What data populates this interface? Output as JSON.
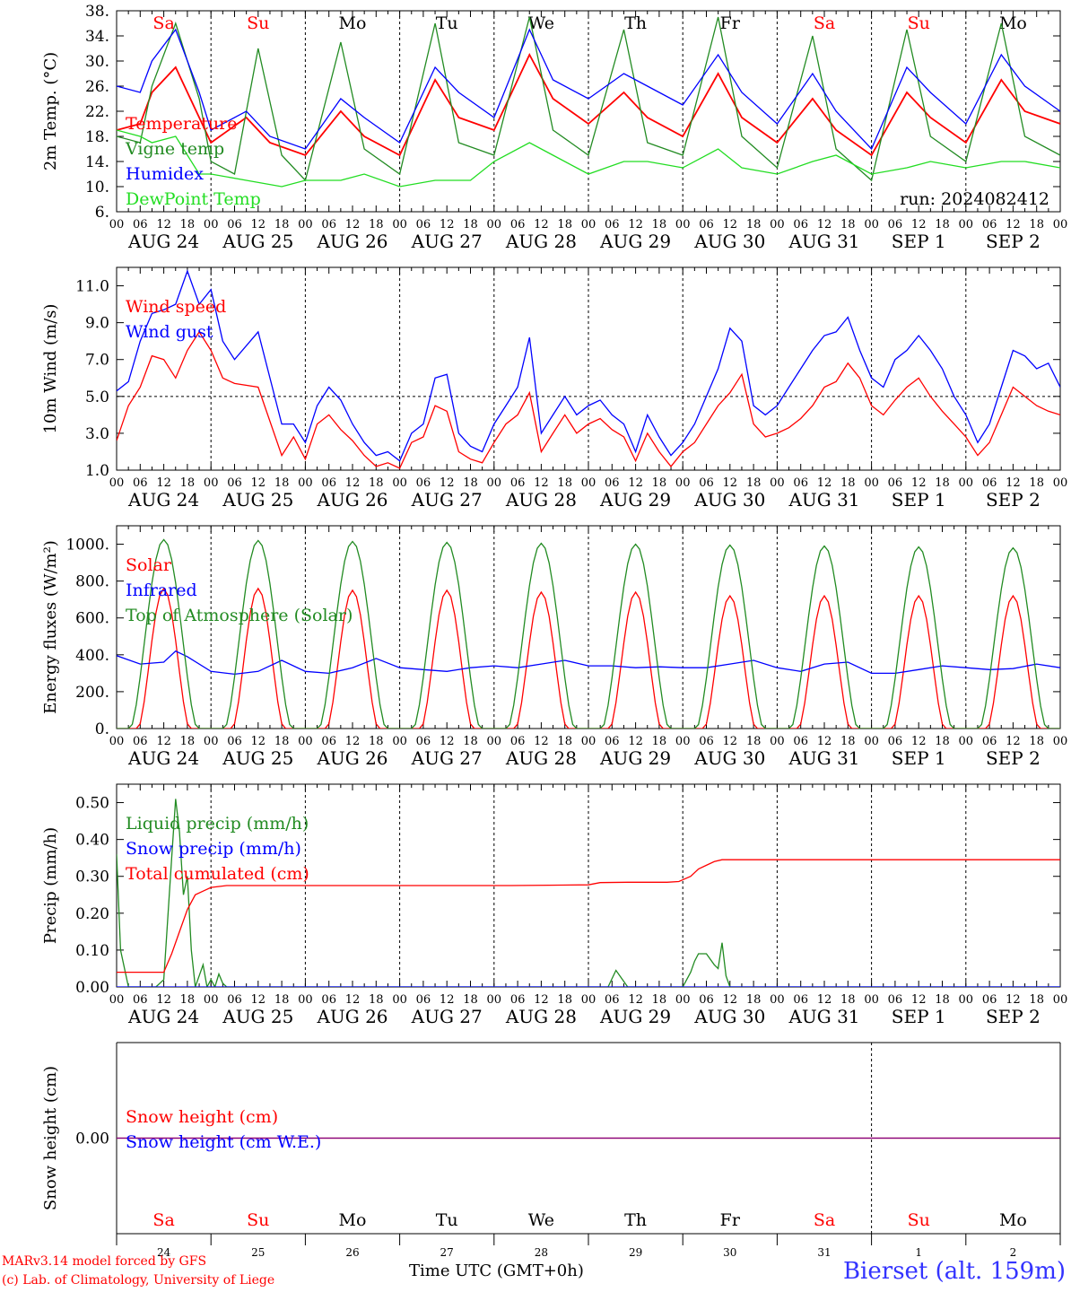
{
  "footer": {
    "model_line": "MARv3.14 model forced by GFS",
    "copyright_line": "(c) Lab. of Climatology, University of Liege",
    "xlabel": "Time UTC (GMT+0h)",
    "station": "Bierset (alt. 159m)"
  },
  "colors": {
    "red": "#ff0000",
    "green": "#228b22",
    "blue": "#0000ff",
    "lightgreen": "#22dd22",
    "purple": "#800080"
  },
  "chart_data": [
    {
      "type": "line",
      "id": "temperature",
      "ylabel": "2m Temp. (°C)",
      "ylim": [
        6,
        38
      ],
      "yticks": [
        "6.",
        "10.",
        "14.",
        "18.",
        "22.",
        "26.",
        "30.",
        "34.",
        "38."
      ],
      "ytick_values": [
        6,
        10,
        14,
        18,
        22,
        26,
        30,
        34,
        38
      ],
      "annotation": "run: 2024082412",
      "weekdays": [
        {
          "label": "Sa",
          "color": "#ff0000"
        },
        {
          "label": "Su",
          "color": "#ff0000"
        },
        {
          "label": "Mo",
          "color": "#000000"
        },
        {
          "label": "Tu",
          "color": "#000000"
        },
        {
          "label": "We",
          "color": "#000000"
        },
        {
          "label": "Th",
          "color": "#000000"
        },
        {
          "label": "Fr",
          "color": "#000000"
        },
        {
          "label": "Sa",
          "color": "#ff0000"
        },
        {
          "label": "Su",
          "color": "#ff0000"
        },
        {
          "label": "Mo",
          "color": "#000000"
        }
      ],
      "series": [
        {
          "name": "Temperature",
          "color": "#ff0000",
          "x": [
            0,
            6,
            9,
            15,
            21,
            24,
            33,
            39,
            48,
            57,
            63,
            72,
            81,
            87,
            96,
            105,
            111,
            120,
            129,
            135,
            144,
            153,
            159,
            168,
            177,
            183,
            192,
            201,
            207,
            216,
            225,
            231,
            240
          ],
          "y": [
            19,
            20,
            25,
            29,
            21,
            17,
            21,
            17,
            15,
            22,
            18,
            15,
            27,
            21,
            19,
            31,
            24,
            20,
            25,
            21,
            18,
            28,
            21,
            17,
            24,
            19,
            15,
            25,
            21,
            17,
            27,
            22,
            20
          ]
        },
        {
          "name": "Vigne temp",
          "color": "#228b22",
          "x": [
            0,
            6,
            9,
            15,
            21,
            24,
            30,
            36,
            42,
            48,
            57,
            63,
            72,
            81,
            87,
            96,
            105,
            111,
            120,
            129,
            135,
            144,
            153,
            159,
            168,
            177,
            183,
            192,
            201,
            207,
            216,
            225,
            231,
            240
          ],
          "y": [
            18,
            17,
            26,
            36,
            24,
            14,
            12,
            32,
            15,
            11,
            33,
            16,
            12,
            36,
            17,
            15,
            37,
            19,
            15,
            35,
            17,
            15,
            37,
            18,
            13,
            34,
            16,
            11,
            35,
            18,
            14,
            36,
            18,
            15
          ]
        },
        {
          "name": "Humidex",
          "color": "#0000ff",
          "x": [
            0,
            6,
            9,
            15,
            21,
            24,
            33,
            39,
            48,
            57,
            63,
            72,
            81,
            87,
            96,
            105,
            111,
            120,
            129,
            135,
            144,
            153,
            159,
            168,
            177,
            183,
            192,
            201,
            207,
            216,
            225,
            231,
            240
          ],
          "y": [
            26,
            25,
            30,
            35,
            25,
            19,
            22,
            18,
            16,
            24,
            21,
            17,
            29,
            25,
            21,
            35,
            27,
            24,
            28,
            26,
            23,
            31,
            25,
            20,
            28,
            22,
            16,
            29,
            25,
            20,
            31,
            26,
            22
          ]
        },
        {
          "name": "DewPoint Temp",
          "color": "#22dd22",
          "x": [
            0,
            6,
            9,
            15,
            21,
            24,
            33,
            42,
            48,
            57,
            63,
            72,
            81,
            90,
            96,
            105,
            111,
            120,
            129,
            135,
            144,
            153,
            159,
            168,
            177,
            183,
            192,
            201,
            207,
            216,
            225,
            231,
            240
          ],
          "y": [
            19,
            18,
            17,
            18,
            12,
            12,
            11,
            10,
            11,
            11,
            12,
            10,
            11,
            11,
            14,
            17,
            15,
            12,
            14,
            14,
            13,
            16,
            13,
            12,
            14,
            15,
            12,
            13,
            14,
            13,
            14,
            14,
            13
          ]
        }
      ]
    },
    {
      "type": "line",
      "id": "wind",
      "ylabel": "10m Wind (m/s)",
      "ylim": [
        1,
        12
      ],
      "yticks": [
        "1.0",
        "3.0",
        "5.0",
        "7.0",
        "9.0",
        "11.0"
      ],
      "ytick_values": [
        1,
        3,
        5,
        7,
        9,
        11
      ],
      "refline": 5,
      "series": [
        {
          "name": "Wind speed",
          "color": "#ff0000",
          "x": [
            0,
            3,
            6,
            9,
            12,
            15,
            18,
            21,
            24,
            27,
            30,
            36,
            42,
            45,
            48,
            51,
            54,
            57,
            60,
            63,
            66,
            69,
            72,
            75,
            78,
            81,
            84,
            87,
            90,
            93,
            96,
            99,
            102,
            105,
            108,
            111,
            114,
            117,
            120,
            123,
            126,
            129,
            132,
            135,
            138,
            141,
            144,
            147,
            150,
            153,
            156,
            159,
            162,
            165,
            168,
            171,
            174,
            177,
            180,
            183,
            186,
            189,
            192,
            195,
            198,
            201,
            204,
            207,
            210,
            213,
            216,
            219,
            222,
            225,
            228,
            231,
            234,
            237,
            240
          ],
          "y": [
            2.6,
            4.5,
            5.5,
            7.2,
            7.0,
            6.0,
            7.5,
            8.5,
            7.5,
            6.0,
            5.7,
            5.5,
            1.8,
            2.8,
            1.6,
            3.5,
            4.0,
            3.2,
            2.6,
            1.8,
            1.2,
            1.4,
            1.1,
            2.5,
            2.8,
            4.5,
            4.2,
            2.0,
            1.6,
            1.4,
            2.5,
            3.5,
            4.0,
            5.2,
            2.0,
            3.0,
            4.0,
            3.0,
            3.5,
            3.8,
            3.2,
            2.8,
            1.5,
            3.0,
            2.0,
            1.2,
            2.0,
            2.5,
            3.5,
            4.5,
            5.2,
            6.2,
            3.5,
            2.8,
            3.0,
            3.3,
            3.8,
            4.5,
            5.5,
            5.8,
            6.8,
            6.0,
            4.5,
            4.0,
            4.8,
            5.5,
            6.0,
            5.0,
            4.2,
            3.5,
            2.8,
            1.8,
            2.5,
            4.0,
            5.5,
            5.0,
            4.5,
            4.2,
            4.0
          ]
        },
        {
          "name": "Wind gust",
          "color": "#0000ff",
          "x": [
            0,
            3,
            6,
            9,
            12,
            15,
            18,
            21,
            24,
            27,
            30,
            36,
            42,
            45,
            48,
            51,
            54,
            57,
            60,
            63,
            66,
            69,
            72,
            75,
            78,
            81,
            84,
            87,
            90,
            93,
            96,
            99,
            102,
            105,
            108,
            111,
            114,
            117,
            120,
            123,
            126,
            129,
            132,
            135,
            138,
            141,
            144,
            147,
            150,
            153,
            156,
            159,
            162,
            165,
            168,
            171,
            174,
            177,
            180,
            183,
            186,
            189,
            192,
            195,
            198,
            201,
            204,
            207,
            210,
            213,
            216,
            219,
            222,
            225,
            228,
            231,
            234,
            237,
            240
          ],
          "y": [
            5.3,
            5.8,
            8.0,
            9.5,
            9.7,
            10.0,
            11.8,
            10.0,
            10.8,
            8.0,
            7.0,
            8.5,
            3.5,
            3.5,
            2.5,
            4.5,
            5.5,
            4.8,
            3.5,
            2.5,
            1.8,
            2.0,
            1.5,
            3.0,
            3.5,
            6.0,
            6.2,
            3.0,
            2.3,
            2.0,
            3.5,
            4.5,
            5.5,
            8.2,
            3.0,
            4.0,
            5.0,
            4.0,
            4.5,
            4.8,
            4.0,
            3.5,
            2.0,
            4.0,
            2.8,
            1.8,
            2.5,
            3.5,
            5.0,
            6.5,
            8.7,
            8.0,
            4.5,
            4.0,
            4.5,
            5.5,
            6.5,
            7.5,
            8.3,
            8.5,
            9.3,
            7.5,
            6.0,
            5.5,
            7.0,
            7.5,
            8.3,
            7.5,
            6.5,
            5.0,
            4.0,
            2.5,
            3.5,
            5.5,
            7.5,
            7.2,
            6.5,
            6.8,
            5.5
          ]
        }
      ]
    },
    {
      "type": "line",
      "id": "energy",
      "ylabel": "Energy fluxes (W/m²)",
      "ylim": [
        0,
        1100
      ],
      "yticks": [
        "0.",
        "200.",
        "400.",
        "600.",
        "800.",
        "1000."
      ],
      "ytick_values": [
        0,
        200,
        400,
        600,
        800,
        1000
      ],
      "series": [
        {
          "name": "Solar",
          "color": "#ff0000",
          "peaks": [
            760,
            760,
            750,
            750,
            740,
            740,
            720,
            720,
            720,
            720
          ]
        },
        {
          "name": "Infrared",
          "color": "#0000ff",
          "x": [
            0,
            6,
            12,
            15,
            18,
            24,
            30,
            36,
            42,
            48,
            54,
            60,
            66,
            72,
            78,
            84,
            90,
            96,
            102,
            108,
            114,
            120,
            126,
            132,
            138,
            144,
            150,
            156,
            162,
            168,
            174,
            180,
            186,
            192,
            198,
            204,
            210,
            216,
            222,
            228,
            234,
            240
          ],
          "y": [
            395,
            350,
            360,
            420,
            390,
            310,
            295,
            310,
            370,
            310,
            300,
            330,
            380,
            330,
            320,
            310,
            330,
            340,
            330,
            350,
            370,
            340,
            340,
            330,
            335,
            330,
            330,
            350,
            370,
            330,
            310,
            350,
            360,
            300,
            300,
            320,
            340,
            330,
            320,
            325,
            350,
            330
          ]
        },
        {
          "name": "Top of Atmosphere (Solar)",
          "color": "#228b22",
          "peaks": [
            1025,
            1020,
            1015,
            1010,
            1005,
            1000,
            995,
            990,
            985,
            980
          ]
        }
      ]
    },
    {
      "type": "line",
      "id": "precip",
      "ylabel": "Precip (mm/h)",
      "ylim": [
        0,
        0.55
      ],
      "yticks": [
        "0.00",
        "0.10",
        "0.20",
        "0.30",
        "0.40",
        "0.50"
      ],
      "ytick_values": [
        0,
        0.1,
        0.2,
        0.3,
        0.4,
        0.5
      ],
      "series": [
        {
          "name": "Liquid precip (mm/h)",
          "color": "#228b22",
          "x": [
            0,
            1,
            3,
            10,
            12,
            14,
            15,
            16,
            17,
            18,
            19,
            20,
            22,
            23,
            24,
            25,
            26,
            27,
            28,
            30,
            125,
            127,
            128,
            130,
            144,
            146,
            147,
            148,
            150,
            152,
            153,
            154,
            155,
            156,
            240
          ],
          "y": [
            0.36,
            0.1,
            0,
            0,
            0.02,
            0.35,
            0.51,
            0.42,
            0.25,
            0.3,
            0.1,
            0,
            0.06,
            0,
            0.02,
            0,
            0.035,
            0.01,
            0,
            0,
            0,
            0.045,
            0.03,
            0,
            0,
            0.04,
            0.07,
            0.09,
            0.09,
            0.06,
            0.05,
            0.12,
            0.03,
            0,
            0
          ]
        },
        {
          "name": "Snow precip (mm/h)",
          "color": "#0000ff",
          "x": [
            0,
            240
          ],
          "y": [
            0,
            0
          ]
        },
        {
          "name": "Total cumulated (cm)",
          "color": "#ff0000",
          "x": [
            0,
            12,
            14,
            16,
            18,
            20,
            22,
            24,
            28,
            30,
            60,
            100,
            110,
            120,
            123,
            130,
            140,
            143,
            146,
            148,
            150,
            152,
            154,
            156,
            240
          ],
          "y": [
            0.04,
            0.04,
            0.09,
            0.15,
            0.21,
            0.25,
            0.26,
            0.27,
            0.275,
            0.275,
            0.275,
            0.275,
            0.276,
            0.277,
            0.283,
            0.284,
            0.284,
            0.286,
            0.3,
            0.32,
            0.33,
            0.34,
            0.345,
            0.345,
            0.345
          ]
        }
      ]
    },
    {
      "type": "line",
      "id": "snow",
      "ylabel": "Snow height (cm)",
      "ylim": [
        -1,
        1
      ],
      "yticks": [
        "0.00"
      ],
      "ytick_values": [
        0
      ],
      "day_numbers": [
        "24",
        "25",
        "26",
        "27",
        "28",
        "29",
        "30",
        "31",
        "1",
        "2"
      ],
      "series": [
        {
          "name": "Snow height (cm)",
          "color": "#ff0000",
          "x": [
            0,
            240
          ],
          "y": [
            0,
            0
          ]
        },
        {
          "name": "Snow height (cm W.E.)",
          "color": "#0000ff",
          "x": [
            0,
            240
          ],
          "y": [
            0,
            0
          ]
        }
      ]
    }
  ],
  "xaxis": {
    "hour_labels": [
      "00",
      "06",
      "12",
      "18"
    ],
    "end_label": "00",
    "date_labels": [
      "AUG 24",
      "AUG 25",
      "AUG 26",
      "AUG 27",
      "AUG 28",
      "AUG 29",
      "AUG 30",
      "AUG 31",
      "SEP  1",
      "SEP  2"
    ],
    "xlim_hours": [
      0,
      240
    ]
  }
}
